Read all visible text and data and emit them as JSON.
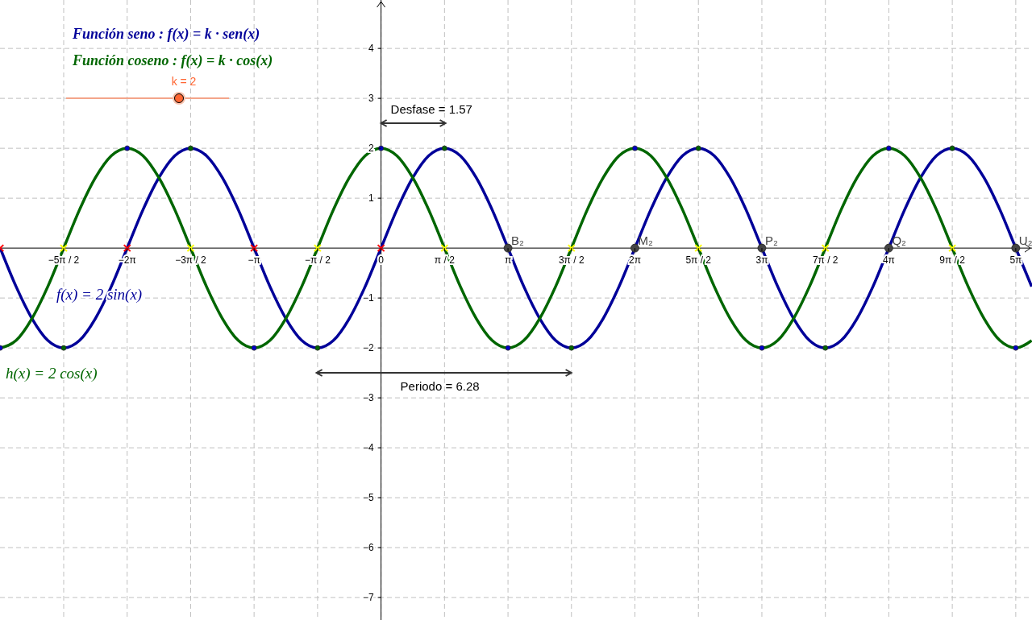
{
  "chart_data": {
    "type": "line",
    "xlim": [
      -9.43,
      16.11
    ],
    "ylim": [
      -7.45,
      4.97
    ],
    "xticks": [
      {
        "value": -7.854,
        "label": "−5π / 2"
      },
      {
        "value": -6.283,
        "label": "−2π"
      },
      {
        "value": -4.712,
        "label": "−3π / 2"
      },
      {
        "value": -3.142,
        "label": "−π"
      },
      {
        "value": -1.571,
        "label": "−π / 2"
      },
      {
        "value": 0,
        "label": "0"
      },
      {
        "value": 1.571,
        "label": "π / 2"
      },
      {
        "value": 3.142,
        "label": "π"
      },
      {
        "value": 4.712,
        "label": "3π / 2"
      },
      {
        "value": 6.283,
        "label": "2π"
      },
      {
        "value": 7.854,
        "label": "5π / 2"
      },
      {
        "value": 9.425,
        "label": "3π"
      },
      {
        "value": 10.996,
        "label": "7π / 2"
      },
      {
        "value": 12.566,
        "label": "4π"
      },
      {
        "value": 14.137,
        "label": "9π / 2"
      },
      {
        "value": 15.708,
        "label": "5π"
      }
    ],
    "yticks": [
      {
        "value": -7,
        "label": "−7"
      },
      {
        "value": -6,
        "label": "−6"
      },
      {
        "value": -5,
        "label": "−5"
      },
      {
        "value": -4,
        "label": "−4"
      },
      {
        "value": -3,
        "label": "−3"
      },
      {
        "value": -2,
        "label": "−2"
      },
      {
        "value": -1,
        "label": "−1"
      },
      1,
      2,
      3,
      4
    ],
    "grid": true,
    "legend": false,
    "x": [
      -9.425,
      -9.032,
      -8.639,
      -8.247,
      -7.854,
      -7.461,
      -7.069,
      -6.676,
      -6.283,
      -5.89,
      -5.498,
      -5.105,
      -4.712,
      -4.32,
      -3.927,
      -3.534,
      -3.142,
      -2.749,
      -2.356,
      -1.963,
      -1.571,
      -1.178,
      -0.785,
      -0.393,
      0,
      0.393,
      0.785,
      1.178,
      1.571,
      1.963,
      2.356,
      2.749,
      3.142,
      3.534,
      3.927,
      4.32,
      4.712,
      5.105,
      5.498,
      5.89,
      6.283,
      6.676,
      7.069,
      7.461,
      7.854,
      8.247,
      8.639,
      9.032,
      9.425,
      9.817,
      10.21,
      10.603,
      10.996,
      11.388,
      11.781,
      12.174,
      12.566,
      12.959,
      13.352,
      13.744,
      14.137,
      14.53,
      14.923,
      15.315,
      15.708,
      16.101
    ],
    "series": [
      {
        "name": "f(x) = 2 sin(x)",
        "color": "#000099",
        "marker": "none",
        "values": [
          0,
          -0.77,
          -1.41,
          -1.85,
          -2,
          -1.85,
          -1.41,
          -0.77,
          0,
          0.77,
          1.41,
          1.85,
          2,
          1.85,
          1.41,
          0.77,
          0,
          -0.77,
          -1.41,
          -1.85,
          -2,
          -1.85,
          -1.41,
          -0.77,
          0,
          0.77,
          1.41,
          1.85,
          2,
          1.85,
          1.41,
          0.77,
          0,
          -0.77,
          -1.41,
          -1.85,
          -2,
          -1.85,
          -1.41,
          -0.77,
          0,
          0.77,
          1.41,
          1.85,
          2,
          1.85,
          1.41,
          0.77,
          0,
          -0.77,
          -1.41,
          -1.85,
          -2,
          -1.85,
          -1.41,
          -0.77,
          0,
          0.77,
          1.41,
          1.85,
          2,
          1.85,
          1.41,
          0.77,
          0,
          -0.77
        ]
      },
      {
        "name": "h(x) = 2 cos(x)",
        "color": "#006600",
        "marker": "none",
        "values": [
          -2,
          -1.85,
          -1.41,
          -0.77,
          0,
          0.77,
          1.41,
          1.85,
          2,
          1.85,
          1.41,
          0.77,
          0,
          -0.77,
          -1.41,
          -1.85,
          -2,
          -1.85,
          -1.41,
          -0.77,
          0,
          0.77,
          1.41,
          1.85,
          2,
          1.85,
          1.41,
          0.77,
          0,
          -0.77,
          -1.41,
          -1.85,
          -2,
          -1.85,
          -1.41,
          -0.77,
          0,
          0.77,
          1.41,
          1.85,
          2,
          1.85,
          1.41,
          0.77,
          0,
          -0.77,
          -1.41,
          -1.85,
          -2,
          -1.85,
          -1.41,
          -0.77,
          0,
          0.77,
          1.41,
          1.85,
          2,
          1.85,
          1.41,
          0.77,
          0,
          -0.77,
          -1.41,
          -1.85,
          -2,
          -1.85
        ]
      },
      {
        "type": "scatter",
        "color": "#ff0000",
        "marker": "cross",
        "x": [
          -9.425,
          -6.283,
          -3.142,
          0
        ],
        "values": [
          0,
          0,
          0,
          0
        ]
      },
      {
        "type": "scatter",
        "color": "#ffff00",
        "marker": "cross",
        "x": [
          -7.854,
          -4.712,
          -1.571,
          1.571,
          4.712,
          7.854,
          10.996,
          14.137
        ],
        "values": [
          0,
          0,
          0,
          0,
          0,
          0,
          0,
          0
        ]
      },
      {
        "type": "scatter",
        "color": "#006600",
        "marker": "circle",
        "x": [
          -7.854,
          -4.712,
          -1.571,
          1.571,
          4.712,
          7.854,
          10.996,
          14.137
        ],
        "values": [
          -2,
          2,
          -2,
          2,
          -2,
          2,
          -2,
          2
        ]
      },
      {
        "type": "scatter",
        "color": "#0000cc",
        "marker": "circle",
        "x": [
          -9.425,
          -6.283,
          -3.142,
          0,
          3.142,
          6.283,
          9.425,
          12.566,
          15.708
        ],
        "values": [
          -2,
          2,
          -2,
          2,
          -2,
          2,
          -2,
          2,
          -2
        ]
      },
      {
        "type": "scatter",
        "color": "#444444",
        "marker": "circle",
        "x": [
          3.142,
          6.283,
          9.425,
          12.566,
          15.708
        ],
        "values": [
          0,
          0,
          0,
          0,
          0
        ]
      }
    ],
    "annotations": [
      "Función seno : f(x) = k · sen(x)",
      "Función coseno : f(x) = k · cos(x)",
      "k = 2",
      "Desfase = 1.57",
      "Periodo = 6.28",
      {
        "text": "B₂",
        "x": 3.142,
        "y": 0
      },
      {
        "text": "M₂",
        "x": 6.283,
        "y": 0
      },
      {
        "text": "P₂",
        "x": 9.425,
        "y": 0
      },
      {
        "text": "Q₂",
        "x": 12.566,
        "y": 0
      },
      {
        "text": "U₂",
        "x": 15.708,
        "y": 0
      }
    ]
  }
}
